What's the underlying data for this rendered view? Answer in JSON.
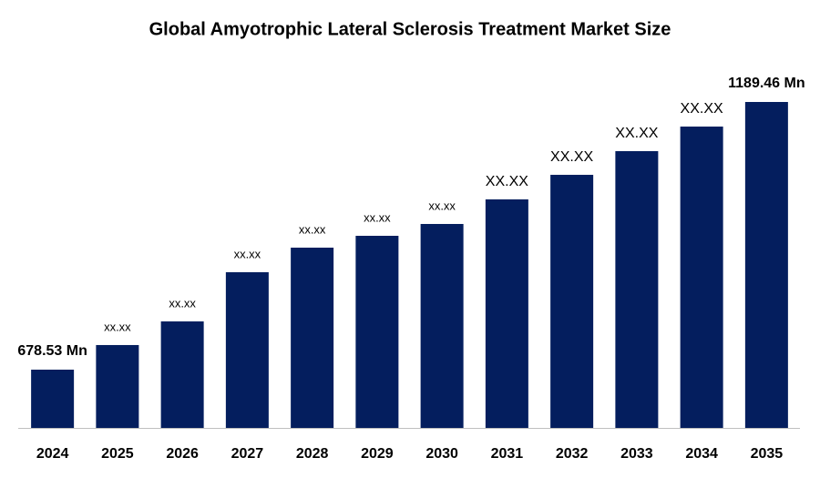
{
  "chart_data": {
    "type": "bar",
    "title": "Global Amyotrophic Lateral Sclerosis Treatment Market Size",
    "categories": [
      "2024",
      "2025",
      "2026",
      "2027",
      "2028",
      "2029",
      "2030",
      "2031",
      "2032",
      "2033",
      "2034",
      "2035"
    ],
    "values": [
      678.53,
      725.5,
      770.6,
      864.5,
      911.4,
      934.0,
      956.6,
      1003.5,
      1050.4,
      1095.6,
      1142.5,
      1189.46
    ],
    "value_labels": [
      "678.53 Mn",
      "xx.xx",
      "xx.xx",
      "xx.xx",
      "xx.xx",
      "xx.xx",
      "xx.xx",
      "XX.XX",
      "XX.XX",
      "XX.XX",
      "XX.XX",
      "1189.46 Mn"
    ],
    "color": "#041e5e"
  }
}
